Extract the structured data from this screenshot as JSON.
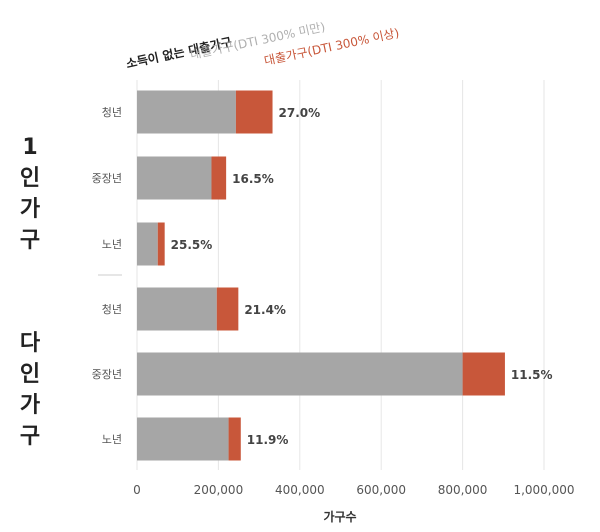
{
  "chart_data": {
    "type": "bar",
    "orientation": "horizontal",
    "stacked": true,
    "groups": [
      {
        "name": "1인가구",
        "categories": [
          "청년",
          "중장년",
          "노년"
        ]
      },
      {
        "name": "다인가구",
        "categories": [
          "청년",
          "중장년",
          "노년"
        ]
      }
    ],
    "categories": [
      "청년",
      "중장년",
      "노년",
      "청년",
      "중장년",
      "노년"
    ],
    "series": [
      {
        "name": "대출가구(DTI 300% 미만)",
        "color": "#a6a6a6",
        "values": [
          243000,
          183000,
          51000,
          196000,
          800000,
          225000
        ]
      },
      {
        "name": "대출가구(DTI 300% 이상)",
        "color": "#c8573a",
        "values": [
          90000,
          36000,
          17000,
          53000,
          104000,
          30000
        ]
      }
    ],
    "data_labels": [
      "27.0%",
      "16.5%",
      "25.5%",
      "21.4%",
      "11.5%",
      "11.9%"
    ],
    "legend_title": "소득이 없는 대출가구",
    "xlabel": "가구수",
    "ylabel": "",
    "xlim": [
      0,
      1000000
    ],
    "xticks": [
      0,
      200000,
      400000,
      600000,
      800000,
      1000000
    ],
    "xtick_labels": [
      "0",
      "200,000",
      "400,000",
      "600,000",
      "800,000",
      "1,000,000"
    ],
    "grid": "vertical",
    "legend_position": "top"
  }
}
